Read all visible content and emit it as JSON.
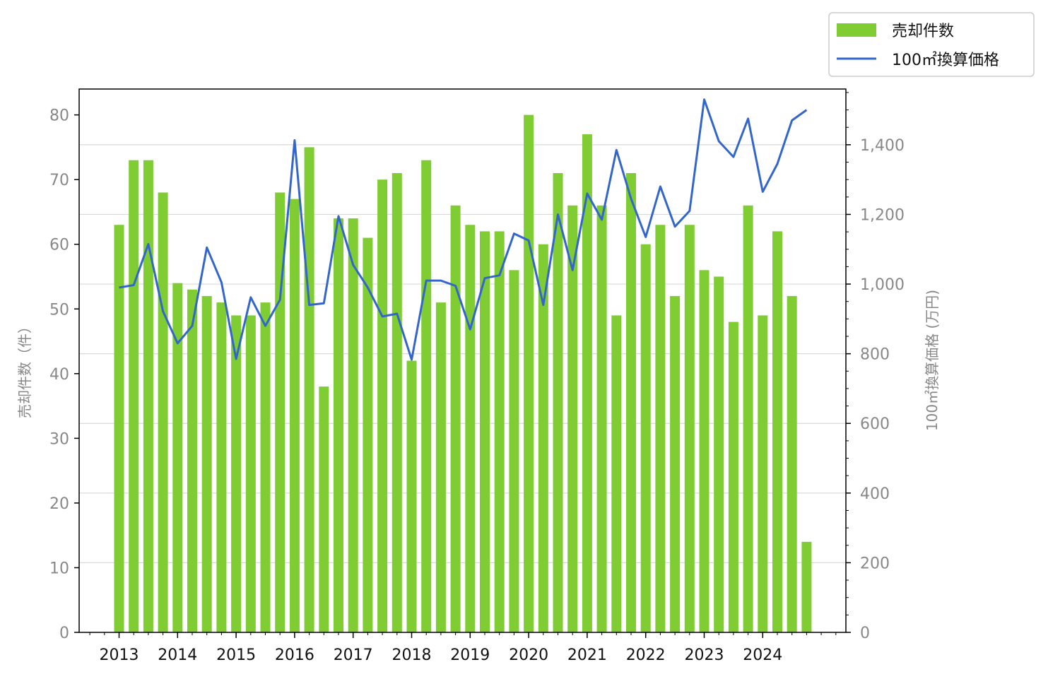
{
  "chart_data": {
    "type": "bar",
    "x_labels": [
      "2013",
      "2014",
      "2015",
      "2016",
      "2017",
      "2018",
      "2019",
      "2020",
      "2021",
      "2022",
      "2023",
      "2024"
    ],
    "ylabel_left": "売却件数（件）",
    "ylabel_right": "100㎡換算価格 (万円)",
    "ylim_left": [
      0,
      84
    ],
    "ylim_right": [
      0,
      1560
    ],
    "left_ticks": [
      "0",
      "10",
      "20",
      "30",
      "40",
      "50",
      "60",
      "70",
      "80"
    ],
    "right_ticks": [
      "0",
      "200",
      "400",
      "600",
      "800",
      "1,000",
      "1,200",
      "1,400"
    ],
    "grid": "horizontal (right axis)",
    "legend_position": "top-right",
    "colors": {
      "bars": "#7fcc33",
      "line": "#3366cc",
      "grid": "#d9d9d9"
    },
    "series": [
      {
        "name": "売却件数",
        "type": "bar",
        "axis": "left",
        "values": [
          63,
          73,
          73,
          68,
          54,
          53,
          52,
          51,
          49,
          49,
          51,
          68,
          67,
          75,
          38,
          64,
          64,
          61,
          70,
          71,
          42,
          73,
          51,
          66,
          63,
          62,
          62,
          56,
          80,
          60,
          71,
          66,
          77,
          66,
          49,
          71,
          60,
          63,
          52,
          63,
          56,
          55,
          48,
          66,
          49,
          62,
          52,
          14
        ]
      },
      {
        "name": "100㎡換算価格",
        "type": "line",
        "axis": "right",
        "values": [
          990,
          997,
          1115,
          922,
          830,
          880,
          1105,
          1005,
          785,
          962,
          880,
          955,
          1413,
          940,
          945,
          1195,
          1055,
          990,
          907,
          915,
          783,
          1010,
          1010,
          995,
          870,
          1017,
          1025,
          1145,
          1125,
          940,
          1200,
          1040,
          1260,
          1185,
          1385,
          1245,
          1135,
          1280,
          1165,
          1210,
          1530,
          1410,
          1365,
          1475,
          1265,
          1345,
          1470,
          1500
        ]
      }
    ]
  }
}
